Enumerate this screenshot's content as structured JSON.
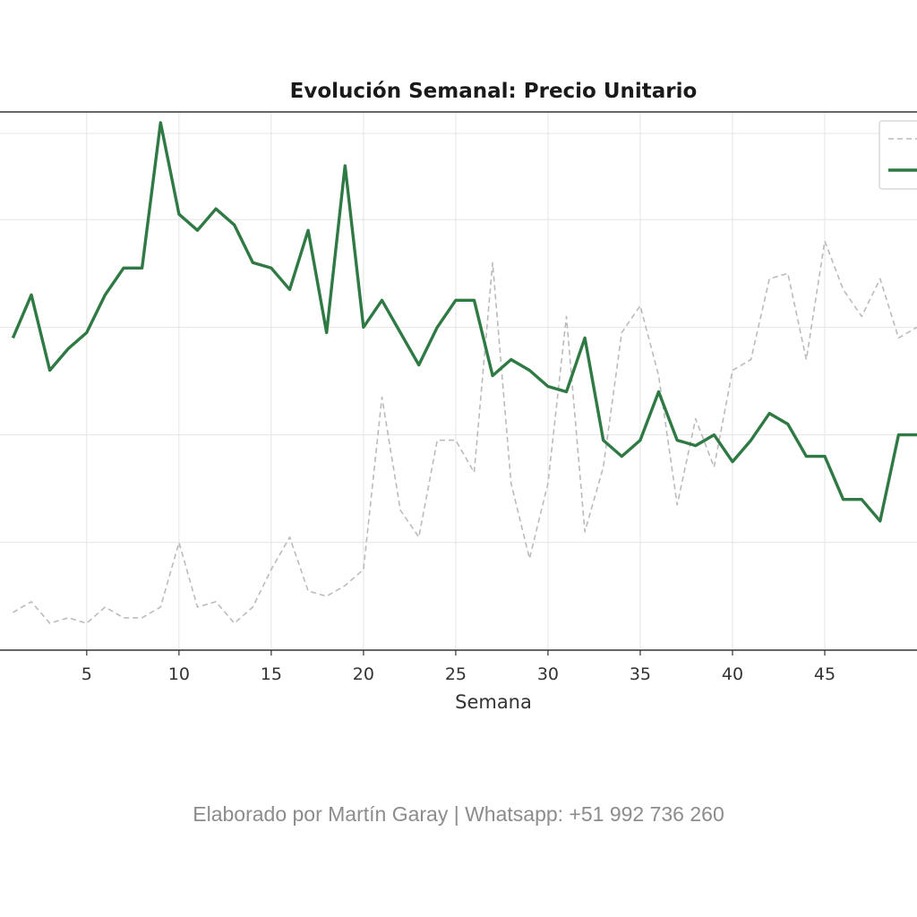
{
  "chart_data": {
    "type": "line",
    "title": "Evolución Semanal: Precio Unitario",
    "xlabel": "Semana",
    "ylabel": "",
    "x_ticks": [
      5,
      10,
      15,
      20,
      25,
      30,
      35,
      40,
      45
    ],
    "xlim": [
      0.3,
      50
    ],
    "ylim": [
      0,
      100
    ],
    "grid": true,
    "legend_position": "top-right",
    "series": [
      {
        "style": "dashed",
        "color": "#bbbbbb",
        "x": [
          1,
          2,
          3,
          4,
          5,
          6,
          7,
          8,
          9,
          10,
          11,
          12,
          13,
          14,
          15,
          16,
          17,
          18,
          19,
          20,
          21,
          22,
          23,
          24,
          25,
          26,
          27,
          28,
          29,
          30,
          31,
          32,
          33,
          34,
          35,
          36,
          37,
          38,
          39,
          40,
          41,
          42,
          43,
          44,
          45,
          46,
          47,
          48,
          49,
          50
        ],
        "values": [
          7,
          9,
          5,
          6,
          5,
          8,
          6,
          6,
          8,
          20,
          8,
          9,
          5,
          8,
          15,
          21,
          11,
          10,
          12,
          15,
          47,
          26,
          21,
          39,
          39,
          33,
          72,
          31,
          17,
          31,
          62,
          22,
          34,
          59,
          64,
          51,
          27,
          43,
          34,
          52,
          54,
          69,
          70,
          54,
          76,
          67,
          62,
          69,
          58,
          60
        ]
      },
      {
        "style": "solid",
        "color": "#2f7a44",
        "x": [
          1,
          2,
          3,
          4,
          5,
          6,
          7,
          8,
          9,
          10,
          11,
          12,
          13,
          14,
          15,
          16,
          17,
          18,
          19,
          20,
          21,
          22,
          23,
          24,
          25,
          26,
          27,
          28,
          29,
          30,
          31,
          32,
          33,
          34,
          35,
          36,
          37,
          38,
          39,
          40,
          41,
          42,
          43,
          44,
          45,
          46,
          47,
          48,
          49,
          50
        ],
        "values": [
          58,
          66,
          52,
          56,
          59,
          66,
          71,
          71,
          98,
          81,
          78,
          82,
          79,
          72,
          71,
          67,
          78,
          59,
          90,
          60,
          65,
          59,
          53,
          60,
          65,
          65,
          51,
          54,
          52,
          49,
          48,
          58,
          39,
          36,
          39,
          48,
          39,
          38,
          40,
          35,
          39,
          44,
          42,
          36,
          36,
          28,
          28,
          24,
          40,
          40
        ]
      }
    ]
  },
  "footer": {
    "text": "Elaborado por Martín Garay | Whatsapp: +51 992 736 260"
  }
}
